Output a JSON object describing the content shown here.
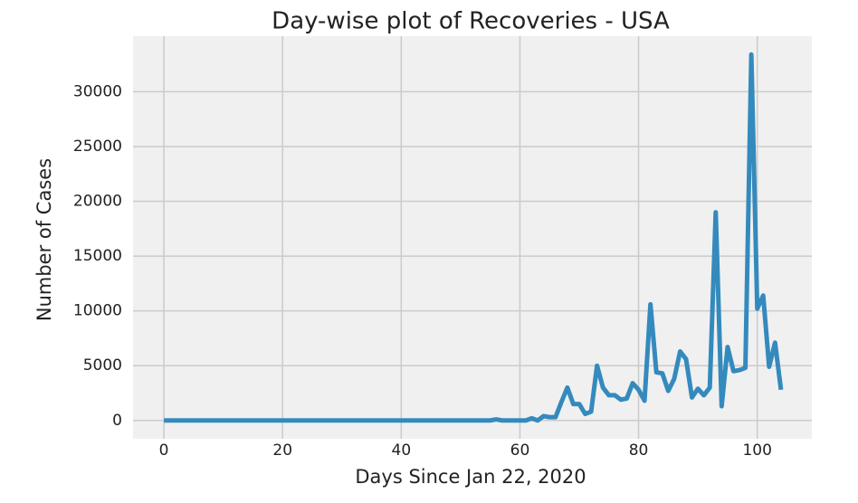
{
  "chart_data": {
    "type": "line",
    "title": "Day-wise plot of Recoveries - USA",
    "x_label": "Days Since Jan 22, 2020",
    "y_label": "Number of Cases",
    "x": [
      0,
      1,
      2,
      3,
      4,
      5,
      6,
      7,
      8,
      9,
      10,
      11,
      12,
      13,
      14,
      15,
      16,
      17,
      18,
      19,
      20,
      21,
      22,
      23,
      24,
      25,
      26,
      27,
      28,
      29,
      30,
      31,
      32,
      33,
      34,
      35,
      36,
      37,
      38,
      39,
      40,
      41,
      42,
      43,
      44,
      45,
      46,
      47,
      48,
      49,
      50,
      51,
      52,
      53,
      54,
      55,
      56,
      57,
      58,
      59,
      60,
      61,
      62,
      63,
      64,
      65,
      66,
      67,
      68,
      69,
      70,
      71,
      72,
      73,
      74,
      75,
      76,
      77,
      78,
      79,
      80,
      81,
      82,
      83,
      84,
      85,
      86,
      87,
      88,
      89,
      90,
      91,
      92,
      93,
      94,
      95,
      96,
      97,
      98,
      99,
      100,
      101,
      102,
      103,
      104
    ],
    "series": [
      {
        "name": "Recoveries",
        "color": "#348ABD",
        "values": [
          0,
          0,
          0,
          0,
          0,
          0,
          0,
          0,
          0,
          0,
          0,
          0,
          0,
          0,
          0,
          0,
          0,
          0,
          0,
          0,
          0,
          0,
          0,
          0,
          0,
          0,
          0,
          0,
          0,
          0,
          0,
          0,
          0,
          0,
          0,
          0,
          0,
          0,
          0,
          0,
          0,
          0,
          0,
          0,
          0,
          0,
          0,
          0,
          0,
          0,
          0,
          0,
          0,
          0,
          0,
          0,
          100,
          0,
          0,
          0,
          0,
          0,
          200,
          0,
          400,
          300,
          300,
          1700,
          3000,
          1500,
          1500,
          600,
          800,
          5000,
          3000,
          2300,
          2300,
          1900,
          2000,
          3400,
          2800,
          1800,
          10600,
          4400,
          4300,
          2700,
          3800,
          6300,
          5600,
          2100,
          2900,
          2300,
          3000,
          19000,
          1300,
          6700,
          4500,
          4600,
          4800,
          33400,
          10200,
          11400,
          4900,
          7100,
          2800
        ]
      }
    ],
    "xlim": [
      -5.2,
      109.2
    ],
    "ylim": [
      -1670,
      35070
    ],
    "xticks": [
      0,
      20,
      40,
      60,
      80,
      100
    ],
    "yticks": [
      0,
      5000,
      10000,
      15000,
      20000,
      25000,
      30000
    ],
    "grid": true
  }
}
